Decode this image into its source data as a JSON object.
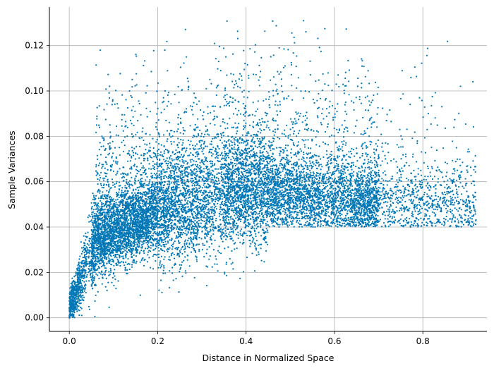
{
  "chart_data": {
    "type": "scatter",
    "title": "",
    "xlabel": "Distance in Normalized Space",
    "ylabel": "Sample Variances",
    "xlim": [
      -0.045,
      0.945
    ],
    "ylim": [
      -0.006,
      0.137
    ],
    "xticks": [
      0.0,
      0.2,
      0.4,
      0.6,
      0.8
    ],
    "xtick_labels": [
      "0.0",
      "0.2",
      "0.4",
      "0.6",
      "0.8"
    ],
    "yticks": [
      0.0,
      0.02,
      0.04,
      0.06,
      0.08,
      0.1,
      0.12
    ],
    "ytick_labels": [
      "0.00",
      "0.02",
      "0.04",
      "0.06",
      "0.08",
      "0.10",
      "0.12"
    ],
    "grid": true,
    "legend": "none",
    "point_color": "#0077b6",
    "n_points": 12000,
    "series": [
      {
        "x": [
          0.0,
          0.01,
          0.02,
          0.03,
          0.05,
          0.07,
          0.08,
          0.1,
          0.12,
          0.15,
          0.18,
          0.2,
          0.25,
          0.28,
          0.3,
          0.35,
          0.4,
          0.45,
          0.5,
          0.55,
          0.6,
          0.65,
          0.7,
          0.75,
          0.8,
          0.85,
          0.9,
          0.27,
          0.31,
          0.37,
          0.53,
          0.07,
          0.92
        ],
        "y": [
          0.0,
          0.005,
          0.012,
          0.02,
          0.025,
          0.03,
          0.035,
          0.038,
          0.04,
          0.043,
          0.045,
          0.047,
          0.05,
          0.052,
          0.054,
          0.055,
          0.056,
          0.055,
          0.054,
          0.053,
          0.05,
          0.049,
          0.05,
          0.051,
          0.052,
          0.053,
          0.05,
          0.102,
          0.101,
          0.095,
          0.131,
          0.118,
          0.052
        ]
      }
    ]
  }
}
